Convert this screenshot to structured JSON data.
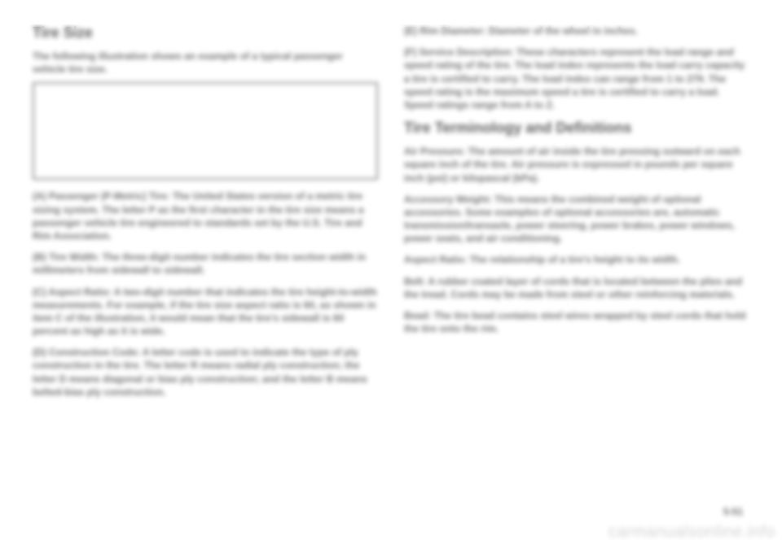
{
  "left": {
    "title": "Tire Size",
    "intro": "The following illustration shows an example of a typical passenger vehicle tire size.",
    "entries": [
      {
        "label": "(A) Passenger (P-Metric) Tire:",
        "text": " The United States version of a metric tire sizing system. The letter P as the first character in the tire size means a passenger vehicle tire engineered to standards set by the U.S. Tire and Rim Association."
      },
      {
        "label": "(B) Tire Width:",
        "text": " The three-digit number indicates the tire section width in millimeters from sidewall to sidewall."
      },
      {
        "label": "(C) Aspect Ratio:",
        "text": " A two-digit number that indicates the tire height-to-width measurements. For example, if the tire size aspect ratio is 60, as shown in item C of the illustration, it would mean that the tire's sidewall is 60 percent as high as it is wide."
      },
      {
        "label": "(D) Construction Code:",
        "text": " A letter code is used to indicate the type of ply construction in the tire. The letter R means radial ply construction; the letter D means diagonal or bias ply construction; and the letter B means belted-bias ply construction."
      }
    ]
  },
  "right": {
    "top_entries": [
      {
        "label": "(E) Rim Diameter:",
        "text": " Diameter of the wheel in inches."
      },
      {
        "label": "(F) Service Description:",
        "text": " These characters represent the load range and speed rating of the tire. The load index represents the load carry capacity a tire is certified to carry. The load index can range from 1 to 279. The speed rating is the maximum speed a tire is certified to carry a load. Speed ratings range from A to Z."
      }
    ],
    "title": "Tire Terminology and Definitions",
    "defs": [
      {
        "label": "Air Pressure:",
        "text": " The amount of air inside the tire pressing outward on each square inch of the tire. Air pressure is expressed in pounds per square inch (psi) or kilopascal (kPa)."
      },
      {
        "label": "Accessory Weight:",
        "text": " This means the combined weight of optional accessories. Some examples of optional accessories are, automatic transmission/transaxle, power steering, power brakes, power windows, power seats, and air conditioning."
      },
      {
        "label": "Aspect Ratio:",
        "text": " The relationship of a tire's height to its width."
      },
      {
        "label": "Belt:",
        "text": " A rubber coated layer of cords that is located between the plies and the tread. Cords may be made from steel or other reinforcing materials."
      },
      {
        "label": "Bead:",
        "text": " The tire bead contains steel wires wrapped by steel cords that hold the tire onto the rim."
      }
    ]
  },
  "page_num": "5-51",
  "watermark": "carmanualsonline.info"
}
